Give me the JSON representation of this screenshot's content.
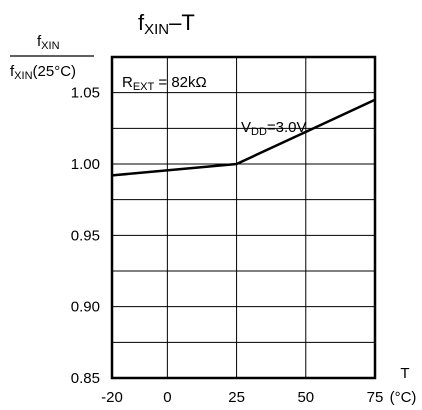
{
  "chart_data": {
    "type": "line",
    "title": {
      "main": "f",
      "sub": "XIN",
      "rest": "–T"
    },
    "ylabel": {
      "num_main": "f",
      "num_sub": "XIN",
      "den_main": "f",
      "den_sub": "XIN",
      "den_rest": "(25°C)"
    },
    "xlabel": {
      "name": "T",
      "unit": "(°C)"
    },
    "annotation": {
      "main": "R",
      "sub": "EXT",
      "rest": " = 82kΩ"
    },
    "x_ticks": [
      -20,
      0,
      25,
      50,
      75
    ],
    "x_tick_labels": [
      "-20",
      "0",
      "25",
      "50",
      "75"
    ],
    "y_ticks": [
      0.85,
      0.9,
      0.95,
      1.0,
      1.05
    ],
    "y_tick_labels": [
      "0.85",
      "0.90",
      "0.95",
      "1.00",
      "1.05"
    ],
    "xlim": [
      -20,
      75
    ],
    "ylim": [
      0.85,
      1.075
    ],
    "grid": true,
    "series": [
      {
        "name": {
          "main": "V",
          "sub": "DD",
          "rest": "=3.0V"
        },
        "x": [
          -20,
          25,
          75
        ],
        "y": [
          0.992,
          1.0,
          1.045
        ]
      }
    ]
  }
}
